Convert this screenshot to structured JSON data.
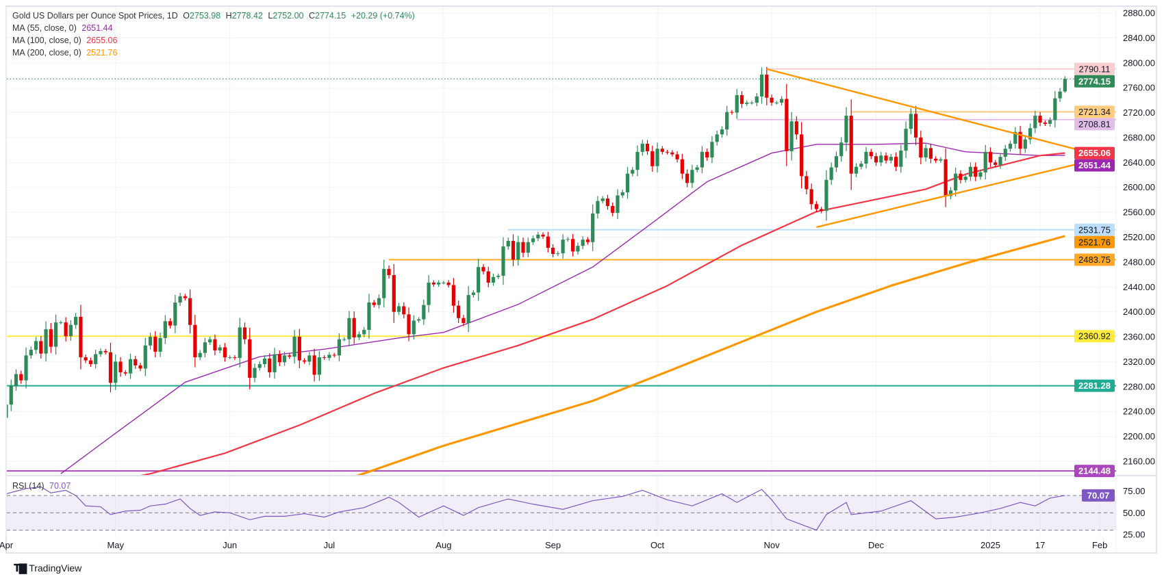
{
  "header": {
    "symbol_title": "Gold US Dollars per Ounce Spot Prices, 1D",
    "open_label": "O",
    "open": "2753.98",
    "high_label": "H",
    "high": "2778.42",
    "low_label": "L",
    "low": "2752.00",
    "close_label": "C",
    "close": "2774.15",
    "change": "+20.29 (+0.74%)",
    "ma55_label": "MA (55, close, 0)",
    "ma55_value": "2651.44",
    "ma100_label": "MA (100, close, 0)",
    "ma100_value": "2655.06",
    "ma200_label": "MA (200, close, 0)",
    "ma200_value": "2521.76",
    "rsi_label": "RSI (14)",
    "rsi_value": "70.07"
  },
  "branding": {
    "logo_text": "TradingView"
  },
  "colors": {
    "up": "#2e8b57",
    "down": "#e50000",
    "ma55": "#9c27b0",
    "ma100": "#f23645",
    "ma200": "#ff9800",
    "trendline": "#ff9800",
    "rsi": "#7e57c2",
    "grid": "#f0f3fa"
  },
  "chart_data": {
    "type": "candlestick",
    "title": "Gold US Dollars per Ounce Spot Prices, 1D",
    "ylim": [
      2131,
      2890
    ],
    "grid": true,
    "y_ticks": [
      "2880.00",
      "2840.00",
      "2800.00",
      "2760.00",
      "2720.00",
      "2680.00",
      "2640.00",
      "2600.00",
      "2560.00",
      "2520.00",
      "2480.00",
      "2440.00",
      "2400.00",
      "2360.00",
      "2320.00",
      "2280.00",
      "2240.00",
      "2200.00",
      "2160.00"
    ],
    "x_tick_labels": [
      "Apr",
      "May",
      "Jun",
      "Jul",
      "Aug",
      "Sep",
      "Oct",
      "Nov",
      "Dec",
      "2025",
      "17",
      "Feb"
    ],
    "last_bar": {
      "open": 2753.98,
      "high": 2778.42,
      "low": 2752.0,
      "close": 2774.15
    },
    "first_open": 2230,
    "close": [
      2251,
      2281,
      2300,
      2290,
      2330,
      2339,
      2353,
      2333,
      2372,
      2344,
      2383,
      2383,
      2361,
      2379,
      2392,
      2327,
      2322,
      2316,
      2332,
      2337,
      2335,
      2286,
      2320,
      2303,
      2301,
      2324,
      2314,
      2309,
      2346,
      2360,
      2336,
      2358,
      2385,
      2378,
      2415,
      2425,
      2422,
      2379,
      2327,
      2334,
      2351,
      2356,
      2338,
      2343,
      2327,
      2327,
      2326,
      2375,
      2356,
      2294,
      2310,
      2316,
      2325,
      2303,
      2332,
      2319,
      2330,
      2328,
      2360,
      2322,
      2320,
      2330,
      2299,
      2327,
      2326,
      2331,
      2330,
      2356,
      2356,
      2390,
      2359,
      2364,
      2371,
      2415,
      2411,
      2422,
      2469,
      2459,
      2400,
      2409,
      2396,
      2364,
      2386,
      2388,
      2411,
      2447,
      2444,
      2447,
      2447,
      2443,
      2410,
      2390,
      2382,
      2427,
      2431,
      2472,
      2465,
      2447,
      2456,
      2458,
      2505,
      2514,
      2484,
      2512,
      2495,
      2512,
      2518,
      2524,
      2521,
      2503,
      2493,
      2494,
      2516,
      2517,
      2497,
      2506,
      2516,
      2512,
      2558,
      2578,
      2582,
      2570,
      2559,
      2587,
      2592,
      2622,
      2628,
      2657,
      2670,
      2658,
      2634,
      2662,
      2657,
      2656,
      2653,
      2645,
      2622,
      2607,
      2628,
      2632,
      2657,
      2648,
      2673,
      2685,
      2693,
      2721,
      2720,
      2748,
      2734,
      2736,
      2736,
      2746,
      2781,
      2744,
      2736,
      2736,
      2742,
      2658,
      2706,
      2685,
      2618,
      2597,
      2573,
      2565,
      2562,
      2612,
      2632,
      2650,
      2672,
      2715,
      2622,
      2633,
      2638,
      2657,
      2650,
      2640,
      2651,
      2643,
      2649,
      2633,
      2659,
      2694,
      2718,
      2680,
      2648,
      2663,
      2646,
      2643,
      2645,
      2586,
      2595,
      2622,
      2612,
      2617,
      2633,
      2617,
      2624,
      2657,
      2640,
      2636,
      2649,
      2662,
      2670,
      2689,
      2662,
      2677,
      2695,
      2715,
      2704,
      2702,
      2708,
      2743,
      2753.86,
      2774.15
    ],
    "moving_averages": [
      {
        "name": "MA (55, close, 0)",
        "color": "#9c27b0",
        "last": 2651.44,
        "points": [
          [
            "2024-04-16",
            2140
          ],
          [
            "2024-05-01",
            2205
          ],
          [
            "2024-05-21",
            2287
          ],
          [
            "2024-06-11",
            2328
          ],
          [
            "2024-06-28",
            2340
          ],
          [
            "2024-07-19",
            2358
          ],
          [
            "2024-08-01",
            2367
          ],
          [
            "2024-08-22",
            2412
          ],
          [
            "2024-09-12",
            2472
          ],
          [
            "2024-09-30",
            2543
          ],
          [
            "2024-10-15",
            2609
          ],
          [
            "2024-11-01",
            2655
          ],
          [
            "2024-11-14",
            2669
          ],
          [
            "2024-12-02",
            2669
          ],
          [
            "2024-12-16",
            2671
          ],
          [
            "2024-12-26",
            2657
          ],
          [
            "2025-01-16",
            2651
          ],
          [
            "2025-01-23",
            2651.44
          ]
        ]
      },
      {
        "name": "MA (100, close, 0)",
        "color": "#f23645",
        "last": 2655.06,
        "points": [
          [
            "2024-05-07",
            2135
          ],
          [
            "2024-05-10",
            2140
          ],
          [
            "2024-05-31",
            2173
          ],
          [
            "2024-06-21",
            2218
          ],
          [
            "2024-07-12",
            2269
          ],
          [
            "2024-08-01",
            2310
          ],
          [
            "2024-08-22",
            2346
          ],
          [
            "2024-09-12",
            2388
          ],
          [
            "2024-10-03",
            2442
          ],
          [
            "2024-10-24",
            2507
          ],
          [
            "2024-11-14",
            2561
          ],
          [
            "2024-12-16",
            2597
          ],
          [
            "2024-12-26",
            2621
          ],
          [
            "2025-01-16",
            2651
          ],
          [
            "2025-01-23",
            2655.06
          ]
        ]
      },
      {
        "name": "MA (200, close, 0)",
        "color": "#ff9800",
        "last": 2521.76,
        "points": [
          [
            "2024-07-08",
            2135
          ],
          [
            "2024-08-01",
            2185
          ],
          [
            "2024-08-22",
            2221
          ],
          [
            "2024-09-12",
            2257
          ],
          [
            "2024-10-03",
            2304
          ],
          [
            "2024-10-24",
            2352
          ],
          [
            "2024-11-14",
            2400
          ],
          [
            "2024-12-05",
            2442
          ],
          [
            "2024-12-26",
            2478
          ],
          [
            "2025-01-23",
            2521.76
          ]
        ]
      }
    ],
    "trendlines": [
      {
        "from": [
          "2024-10-31",
          2790
        ],
        "to": [
          "2025-02-06",
          2645
        ]
      },
      {
        "from": [
          "2024-11-14",
          2536
        ],
        "to": [
          "2025-02-06",
          2652
        ]
      }
    ],
    "levels": [
      {
        "price": 2790.11,
        "label": "2790.11",
        "from": "2024-10-31",
        "color": "#f8cdd0",
        "badge": "#f8cdd0",
        "text": "#131722"
      },
      {
        "price": 2774.15,
        "label": "2774.15",
        "from": null,
        "color": "#2e8b57",
        "badge": "#2e8b57",
        "text": "#ffffff",
        "dotted": true
      },
      {
        "price": 2721.34,
        "label": "2721.34",
        "from": "2024-11-25",
        "color": "#ffcc80",
        "badge": "#ffcc80",
        "text": "#131722"
      },
      {
        "price": 2708.81,
        "label": "2708.81",
        "from": "2024-10-23",
        "color": "#e1bee7",
        "badge": "#e1bee7",
        "text": "#131722"
      },
      {
        "price": 2655.06,
        "label": "2655.06",
        "from": "none",
        "color": "#f23645",
        "badge": "#f23645",
        "text": "#ffffff"
      },
      {
        "price": 2651.44,
        "label": "2651.44",
        "from": "none",
        "color": "#9c27b0",
        "badge": "#9c27b0",
        "text": "#ffffff"
      },
      {
        "price": 2531.75,
        "label": "2531.75",
        "from": "2024-08-20",
        "color": "#bbdefb",
        "badge": "#bbdefb",
        "text": "#131722"
      },
      {
        "price": 2521.76,
        "label": "2521.76",
        "from": "none",
        "color": "#ff9800",
        "badge": "#ff9800",
        "text": "#131722"
      },
      {
        "price": 2483.75,
        "label": "2483.75",
        "from": "2024-07-17",
        "color": "#ffa726",
        "badge": "#ffa726",
        "text": "#131722"
      },
      {
        "price": 2360.92,
        "label": "2360.92",
        "from": null,
        "color": "#ffeb3b",
        "badge": "#ffeb3b",
        "text": "#131722"
      },
      {
        "price": 2281.28,
        "label": "2281.28",
        "from": null,
        "color": "#22ab94",
        "badge": "#22ab94",
        "text": "#ffffff"
      },
      {
        "price": 2144.48,
        "label": "2144.48",
        "from": null,
        "color": "#ab47bc",
        "badge": "#ab47bc",
        "text": "#ffffff"
      }
    ],
    "rsi": {
      "name": "RSI (14)",
      "last": 70.07,
      "last_label": "70.07",
      "ylim": [
        20,
        95
      ],
      "bands": [
        70,
        50,
        30
      ],
      "y_ticks": [
        "75.00",
        "50.00",
        "25.00"
      ],
      "points": [
        [
          "2024-04-01",
          72
        ],
        [
          "2024-04-05",
          78
        ],
        [
          "2024-04-10",
          80
        ],
        [
          "2024-04-12",
          73
        ],
        [
          "2024-04-17",
          76
        ],
        [
          "2024-04-19",
          70
        ],
        [
          "2024-04-23",
          58
        ],
        [
          "2024-04-26",
          57
        ],
        [
          "2024-04-30",
          48
        ],
        [
          "2024-05-03",
          52
        ],
        [
          "2024-05-08",
          53
        ],
        [
          "2024-05-10",
          58
        ],
        [
          "2024-05-15",
          60
        ],
        [
          "2024-05-20",
          66
        ],
        [
          "2024-05-22",
          55
        ],
        [
          "2024-05-24",
          47
        ],
        [
          "2024-05-29",
          51
        ],
        [
          "2024-06-03",
          50
        ],
        [
          "2024-06-07",
          42
        ],
        [
          "2024-06-12",
          46
        ],
        [
          "2024-06-18",
          46
        ],
        [
          "2024-06-24",
          49
        ],
        [
          "2024-06-28",
          45
        ],
        [
          "2024-07-03",
          51
        ],
        [
          "2024-07-10",
          56
        ],
        [
          "2024-07-17",
          68
        ],
        [
          "2024-07-19",
          62
        ],
        [
          "2024-07-25",
          45
        ],
        [
          "2024-08-01",
          58
        ],
        [
          "2024-08-07",
          47
        ],
        [
          "2024-08-12",
          56
        ],
        [
          "2024-08-20",
          66
        ],
        [
          "2024-08-27",
          60
        ],
        [
          "2024-09-04",
          54
        ],
        [
          "2024-09-12",
          64
        ],
        [
          "2024-09-20",
          69
        ],
        [
          "2024-09-26",
          76
        ],
        [
          "2024-10-03",
          65
        ],
        [
          "2024-10-10",
          58
        ],
        [
          "2024-10-18",
          72
        ],
        [
          "2024-10-23",
          62
        ],
        [
          "2024-10-30",
          77
        ],
        [
          "2024-11-01",
          65
        ],
        [
          "2024-11-06",
          43
        ],
        [
          "2024-11-14",
          30
        ],
        [
          "2024-11-18",
          48
        ],
        [
          "2024-11-22",
          62
        ],
        [
          "2024-11-25",
          48
        ],
        [
          "2024-12-03",
          52
        ],
        [
          "2024-12-11",
          64
        ],
        [
          "2024-12-18",
          43
        ],
        [
          "2024-12-24",
          45
        ],
        [
          "2024-12-31",
          50
        ],
        [
          "2025-01-06",
          55
        ],
        [
          "2025-01-10",
          62
        ],
        [
          "2025-01-15",
          58
        ],
        [
          "2025-01-20",
          67
        ],
        [
          "2025-01-23",
          70.07
        ]
      ]
    }
  }
}
